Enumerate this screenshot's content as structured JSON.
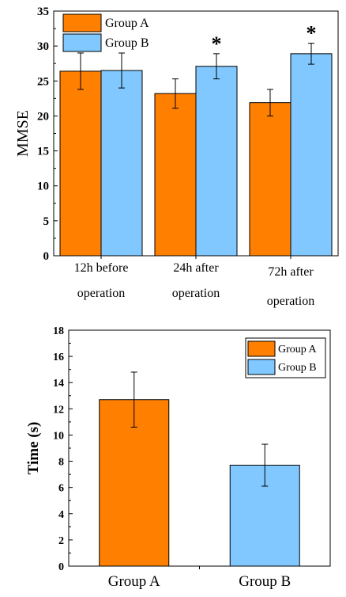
{
  "chart_data": [
    {
      "type": "bar",
      "ylabel": "MMSE",
      "xlabel": "",
      "ylim": [
        0,
        35
      ],
      "yticks": [
        0,
        5,
        10,
        15,
        20,
        25,
        30,
        35
      ],
      "categories": [
        [
          "12h before",
          "operation"
        ],
        [
          "24h after",
          "operation"
        ],
        [
          "72h after",
          "operation"
        ]
      ],
      "series": [
        {
          "name": "Group A",
          "color": "#ff7f00",
          "values": [
            26.4,
            23.2,
            21.9
          ],
          "errors": [
            2.6,
            2.1,
            1.9
          ]
        },
        {
          "name": "Group B",
          "color": "#80c8ff",
          "values": [
            26.5,
            27.1,
            28.9
          ],
          "errors": [
            2.5,
            1.8,
            1.5
          ]
        }
      ],
      "annotations": [
        {
          "text": "*",
          "category_index": 1,
          "series_index": 1
        },
        {
          "text": "*",
          "category_index": 2,
          "series_index": 1
        }
      ],
      "legend_position": "top-left",
      "grid": false
    },
    {
      "type": "bar",
      "ylabel": "Time (s)",
      "xlabel": "",
      "ylim": [
        0,
        18
      ],
      "yticks": [
        0,
        2,
        4,
        6,
        8,
        10,
        12,
        14,
        16,
        18
      ],
      "categories": [
        "Group A",
        "Group B"
      ],
      "values": [
        12.7,
        7.7
      ],
      "errors": [
        2.1,
        1.6
      ],
      "colors": [
        "#ff7f00",
        "#80c8ff"
      ],
      "legend": [
        {
          "name": "Group A",
          "color": "#ff7f00"
        },
        {
          "name": "Group B",
          "color": "#80c8ff"
        }
      ],
      "legend_position": "top-right",
      "grid": false
    }
  ]
}
